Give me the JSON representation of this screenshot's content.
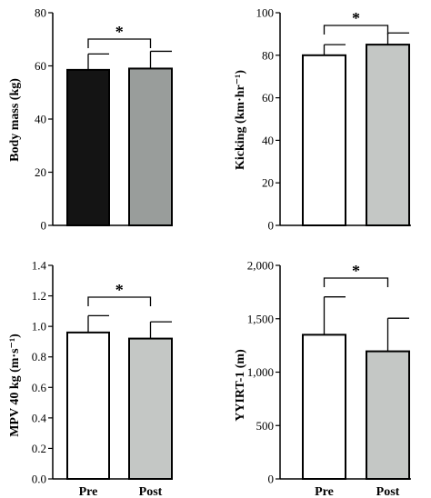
{
  "chart_data": [
    {
      "type": "bar",
      "ylabel": "Body mass (kg)",
      "categories": [
        "",
        ""
      ],
      "values": [
        58.5,
        59.0
      ],
      "errors": [
        6.0,
        6.5
      ],
      "ylim": [
        0,
        80
      ],
      "yticks": [
        "0",
        "20",
        "40",
        "60",
        "80"
      ],
      "bar_colors": [
        "#141414",
        "#999d9b"
      ],
      "significance": "*"
    },
    {
      "type": "bar",
      "ylabel": "Kicking (km·hr⁻¹)",
      "categories": [
        "",
        ""
      ],
      "values": [
        80,
        85
      ],
      "errors": [
        5,
        5.5
      ],
      "ylim": [
        0,
        100
      ],
      "yticks": [
        "0",
        "20",
        "40",
        "60",
        "80",
        "100"
      ],
      "bar_colors": [
        "#ffffff",
        "#c4c7c5"
      ],
      "significance": "*"
    },
    {
      "type": "bar",
      "ylabel": "MPV 40 kg (m·s⁻¹)",
      "categories": [
        "Pre",
        "Post"
      ],
      "values": [
        0.96,
        0.92
      ],
      "errors": [
        0.11,
        0.11
      ],
      "ylim": [
        0,
        1.4
      ],
      "yticks": [
        "0.0",
        "0.2",
        "0.4",
        "0.6",
        "0.8",
        "1.0",
        "1.2",
        "1.4"
      ],
      "bar_colors": [
        "#ffffff",
        "#c4c7c5"
      ],
      "significance": "*"
    },
    {
      "type": "bar",
      "ylabel": "YYIRT-1 (m)",
      "categories": [
        "Pre",
        "Post"
      ],
      "values": [
        1350,
        1195
      ],
      "errors": [
        355,
        310
      ],
      "ylim": [
        0,
        2000
      ],
      "yticks": [
        "0",
        "500",
        "1,000",
        "1,500",
        "2,000"
      ],
      "bar_colors": [
        "#ffffff",
        "#c4c7c5"
      ],
      "significance": "*"
    }
  ]
}
